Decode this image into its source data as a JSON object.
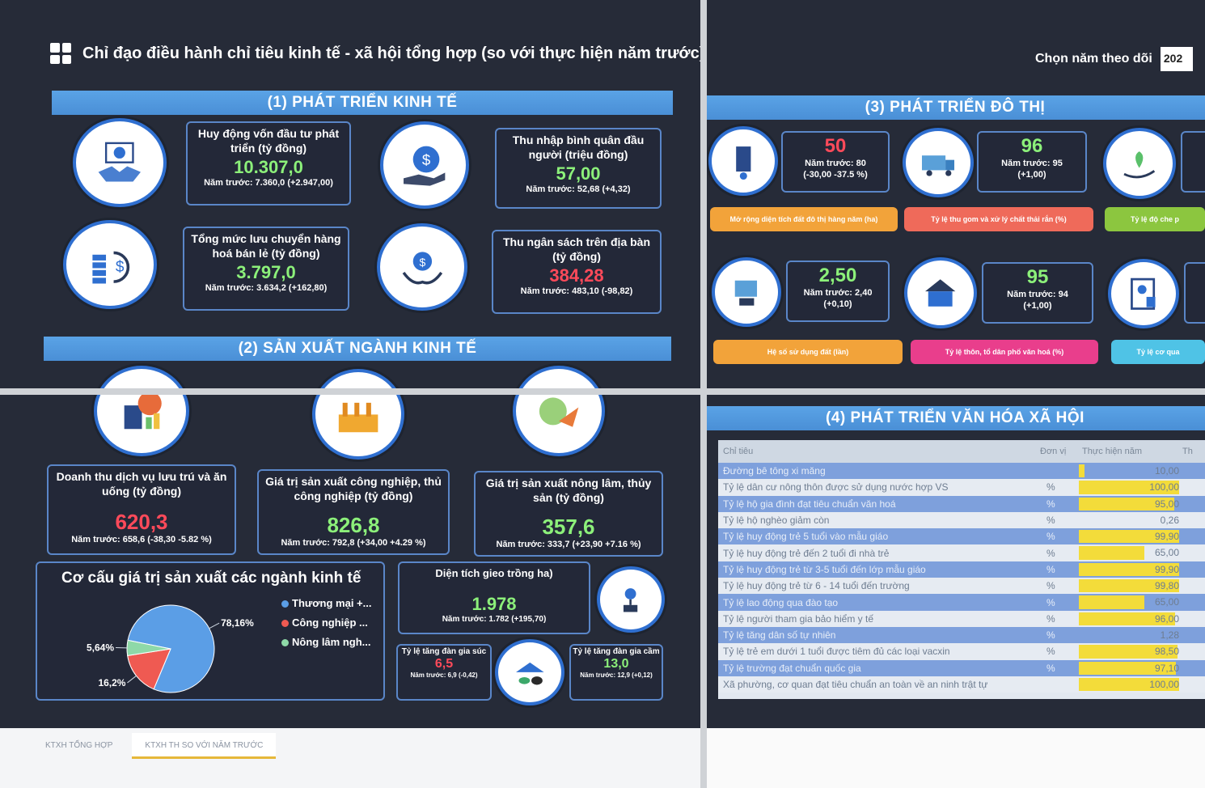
{
  "header": {
    "title": "Chỉ đạo điều hành chỉ tiêu kinh tế - xã hội tổng hợp (so với thực hiện năm trước)",
    "year_label": "Chọn năm theo dõi",
    "year_value": "202"
  },
  "colors": {
    "up": "#8cf07a",
    "down": "#ff4a5a",
    "accent": "#4a8fd6",
    "bar": "#f3dc3a"
  },
  "section1": {
    "title": "(1) PHÁT TRIỂN KINH TẾ",
    "kpis": [
      {
        "label": "Huy động vốn đầu tư phát triển (tỷ đồng)",
        "value": "10.307,0",
        "prev": "Năm trước: 7.360,0 (+2.947,00)",
        "trend": "up"
      },
      {
        "label": "Thu nhập bình quân đầu người (triệu đồng)",
        "value": "57,00",
        "prev": "Năm trước: 52,68 (+4,32)",
        "trend": "up"
      },
      {
        "label": "Tổng mức lưu chuyển hàng hoá bán lẻ (tỷ đồng)",
        "value": "3.797,0",
        "prev": "Năm trước: 3.634,2 (+162,80)",
        "trend": "up"
      },
      {
        "label": "Thu ngân sách trên địa bàn (tỷ đồng)",
        "value": "384,28",
        "prev": "Năm trước: 483,10 (-98,82)",
        "trend": "down"
      }
    ]
  },
  "section2": {
    "title": "(2) SẢN XUẤT NGÀNH KINH TẾ",
    "kpis": [
      {
        "label": "Doanh thu dịch vụ lưu trú và ăn uống (tỷ đồng)",
        "value": "620,3",
        "prev": "Năm trước: 658,6 (-38,30 -5.82 %)",
        "trend": "down"
      },
      {
        "label": "Giá trị sản xuất công nghiệp, thủ công nghiệp (tỷ đồng)",
        "value": "826,8",
        "prev": "Năm trước: 792,8 (+34,00 +4.29 %)",
        "trend": "up"
      },
      {
        "label": "Giá trị sản xuất nông lâm, thủy sản (tỷ đồng)",
        "value": "357,6",
        "prev": "Năm trước: 333,7 (+23,90 +7.16 %)",
        "trend": "up"
      }
    ],
    "structure_title": "Cơ cấu giá trị sản xuất các ngành kinh tế",
    "area": {
      "label": "Diện tích gieo trồng ha)",
      "value": "1.978",
      "prev": "Năm trước: 1.782 (+195,70)"
    },
    "livestock": {
      "label": "Tỷ lệ tăng đàn gia súc",
      "value": "6,5",
      "prev": "Năm trước: 6,9 (-0,42)"
    },
    "poultry": {
      "label": "Tỷ lệ tăng đàn gia cầm",
      "value": "13,0",
      "prev": "Năm trước: 12,9 (+0,12)"
    }
  },
  "chart_data": {
    "type": "pie",
    "title": "Cơ cấu giá trị sản xuất các ngành kinh tế",
    "categories": [
      "Thương mại +...",
      "Công nghiệp ...",
      "Nông lâm ngh..."
    ],
    "values": [
      78.16,
      16.2,
      5.64
    ],
    "labels": [
      "78,16%",
      "16,2%",
      "5,64%"
    ],
    "colors": [
      "#5b9ee6",
      "#ef5a52",
      "#8ed9a8"
    ]
  },
  "section3": {
    "title": "(3) PHÁT TRIỂN ĐÔ THỊ",
    "kpis": [
      {
        "value": "50",
        "prev1": "Năm trước: 80",
        "prev2": "(-30,00 -37.5 %)",
        "trend": "down",
        "pill": "Mở rộng diện tích đất đô thị hàng năm (ha)",
        "pill_color": "#f2a33a"
      },
      {
        "value": "96",
        "prev1": "Năm trước: 95",
        "prev2": "(+1,00)",
        "trend": "up",
        "pill": "Tỷ lệ thu gom và xử lý chất thải rắn (%)",
        "pill_color": "#ef6a5a"
      },
      {
        "value": "2,50",
        "prev1": "Năm trước: 2,40",
        "prev2": "(+0,10)",
        "trend": "up",
        "pill": "Hệ số sử dụng đất (lần)",
        "pill_color": "#f2a33a"
      },
      {
        "value": "95",
        "prev1": "Năm trước: 94",
        "prev2": "(+1,00)",
        "trend": "up",
        "pill": "Tỷ lệ thôn, tổ dân phố văn hoá (%)",
        "pill_color": "#e93e8c"
      }
    ],
    "pill_extra1": "Tỷ lệ độ che p",
    "pill_extra2": "Tỷ lệ cơ qua"
  },
  "section4": {
    "title": "(4) PHÁT TRIỂN VĂN HÓA XÃ HỘI",
    "columns": [
      "Chỉ tiêu",
      "Đơn vị",
      "Thực hiện năm",
      "Th"
    ],
    "rows": [
      {
        "name": "Đường bê tông xi măng",
        "unit": "",
        "value": "10,00",
        "fill": 0.06
      },
      {
        "name": "Tỷ lệ dân cư nông thôn được sử dụng nước hợp VS",
        "unit": "%",
        "value": "100,00",
        "fill": 1.0
      },
      {
        "name": "Tỷ lệ hộ gia đình đạt tiêu chuẩn văn hoá",
        "unit": "%",
        "value": "95,00",
        "fill": 0.95
      },
      {
        "name": "Tỷ lệ hộ nghèo giảm còn",
        "unit": "%",
        "value": "0,26",
        "fill": 0.0
      },
      {
        "name": "Tỷ lệ huy động trẻ 5 tuổi vào mẫu giáo",
        "unit": "%",
        "value": "99,90",
        "fill": 1.0
      },
      {
        "name": "Tỷ lệ huy động trẻ đến 2 tuổi đi nhà trẻ",
        "unit": "%",
        "value": "65,00",
        "fill": 0.65
      },
      {
        "name": "Tỷ lệ huy động trẻ từ 3-5 tuổi đến lớp mẫu giáo",
        "unit": "%",
        "value": "99,90",
        "fill": 1.0
      },
      {
        "name": "Tỷ lệ huy động trẻ từ 6 - 14 tuổi đến trường",
        "unit": "%",
        "value": "99,80",
        "fill": 1.0
      },
      {
        "name": "Tỷ lệ lao động qua đào tạo",
        "unit": "%",
        "value": "65,00",
        "fill": 0.65
      },
      {
        "name": "Tỷ lệ người tham gia bảo hiểm y tế",
        "unit": "%",
        "value": "96,00",
        "fill": 0.96
      },
      {
        "name": "Tỷ lệ tăng dân số tự nhiên",
        "unit": "%",
        "value": "1,28",
        "fill": 0.0
      },
      {
        "name": "Tỷ lệ trẻ em dưới 1 tuổi được tiêm đủ các loại vacxin",
        "unit": "%",
        "value": "98,50",
        "fill": 0.98
      },
      {
        "name": "Tỷ lệ trường đạt chuẩn quốc gia",
        "unit": "%",
        "value": "97,10",
        "fill": 0.97
      },
      {
        "name": "Xã phường, cơ quan đạt tiêu chuẩn an toàn về an ninh trật tự",
        "unit": "",
        "value": "100,00",
        "fill": 1.0
      }
    ]
  },
  "tabs": [
    "KTXH TỔNG HỢP",
    "KTXH TH SO VỚI NĂM TRƯỚC"
  ]
}
